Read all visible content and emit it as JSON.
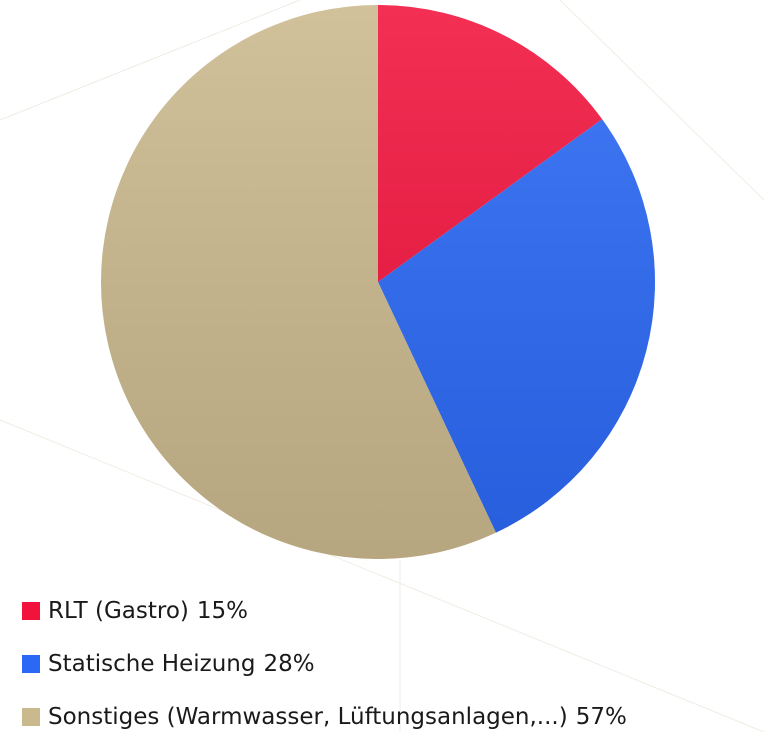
{
  "chart_data": {
    "type": "pie",
    "categories": [
      "RLT (Gastro)",
      "Statische Heizung",
      "Sonstiges (Warmwasser, Lüftungsanlagen,...)"
    ],
    "values": [
      15,
      28,
      57
    ],
    "value_labels": [
      "15%",
      "28%",
      "57%"
    ],
    "colors": [
      "#f2133d",
      "#2a68f5",
      "#cbb98e"
    ],
    "legend": "bottom-left"
  }
}
